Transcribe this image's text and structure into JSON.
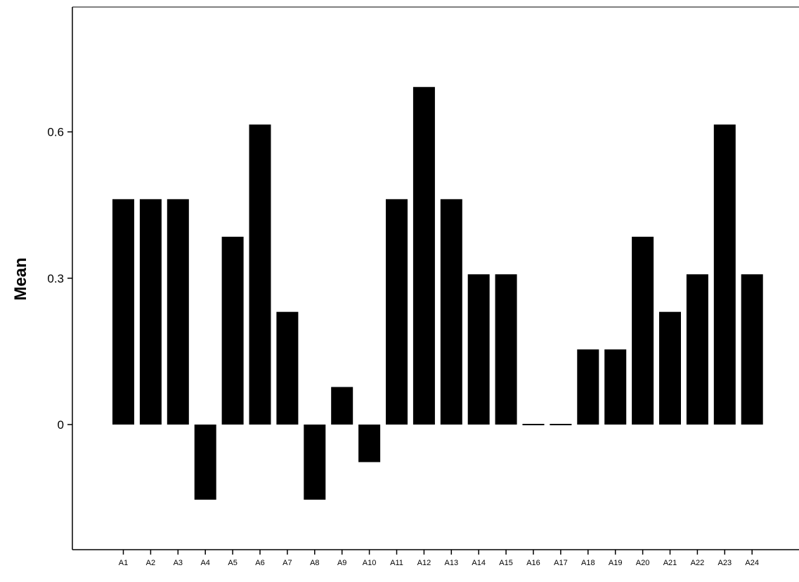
{
  "chart_data": {
    "type": "bar",
    "title": "",
    "xlabel": "",
    "ylabel": "Mean",
    "categories": [
      "A1",
      "A2",
      "A3",
      "A4",
      "A5",
      "A6",
      "A7",
      "A8",
      "A9",
      "A10",
      "A11",
      "A12",
      "A13",
      "A14",
      "A15",
      "A16",
      "A17",
      "A18",
      "A19",
      "A20",
      "A21",
      "A22",
      "A23",
      "A24"
    ],
    "values": [
      0.462,
      0.462,
      0.462,
      -0.154,
      0.385,
      0.615,
      0.231,
      -0.154,
      0.077,
      -0.077,
      0.462,
      0.692,
      0.462,
      0.308,
      0.308,
      0.0,
      0.0,
      0.154,
      0.154,
      0.385,
      0.231,
      0.308,
      0.615,
      0.308
    ],
    "y_ticks": [
      {
        "value": 0,
        "label": "0"
      },
      {
        "value": 0.3,
        "label": "0.3"
      },
      {
        "value": 0.6,
        "label": "0.6"
      }
    ],
    "ylim": [
      -0.255,
      0.855
    ],
    "bar_color": "#000000",
    "grid": false,
    "legend": "none"
  }
}
